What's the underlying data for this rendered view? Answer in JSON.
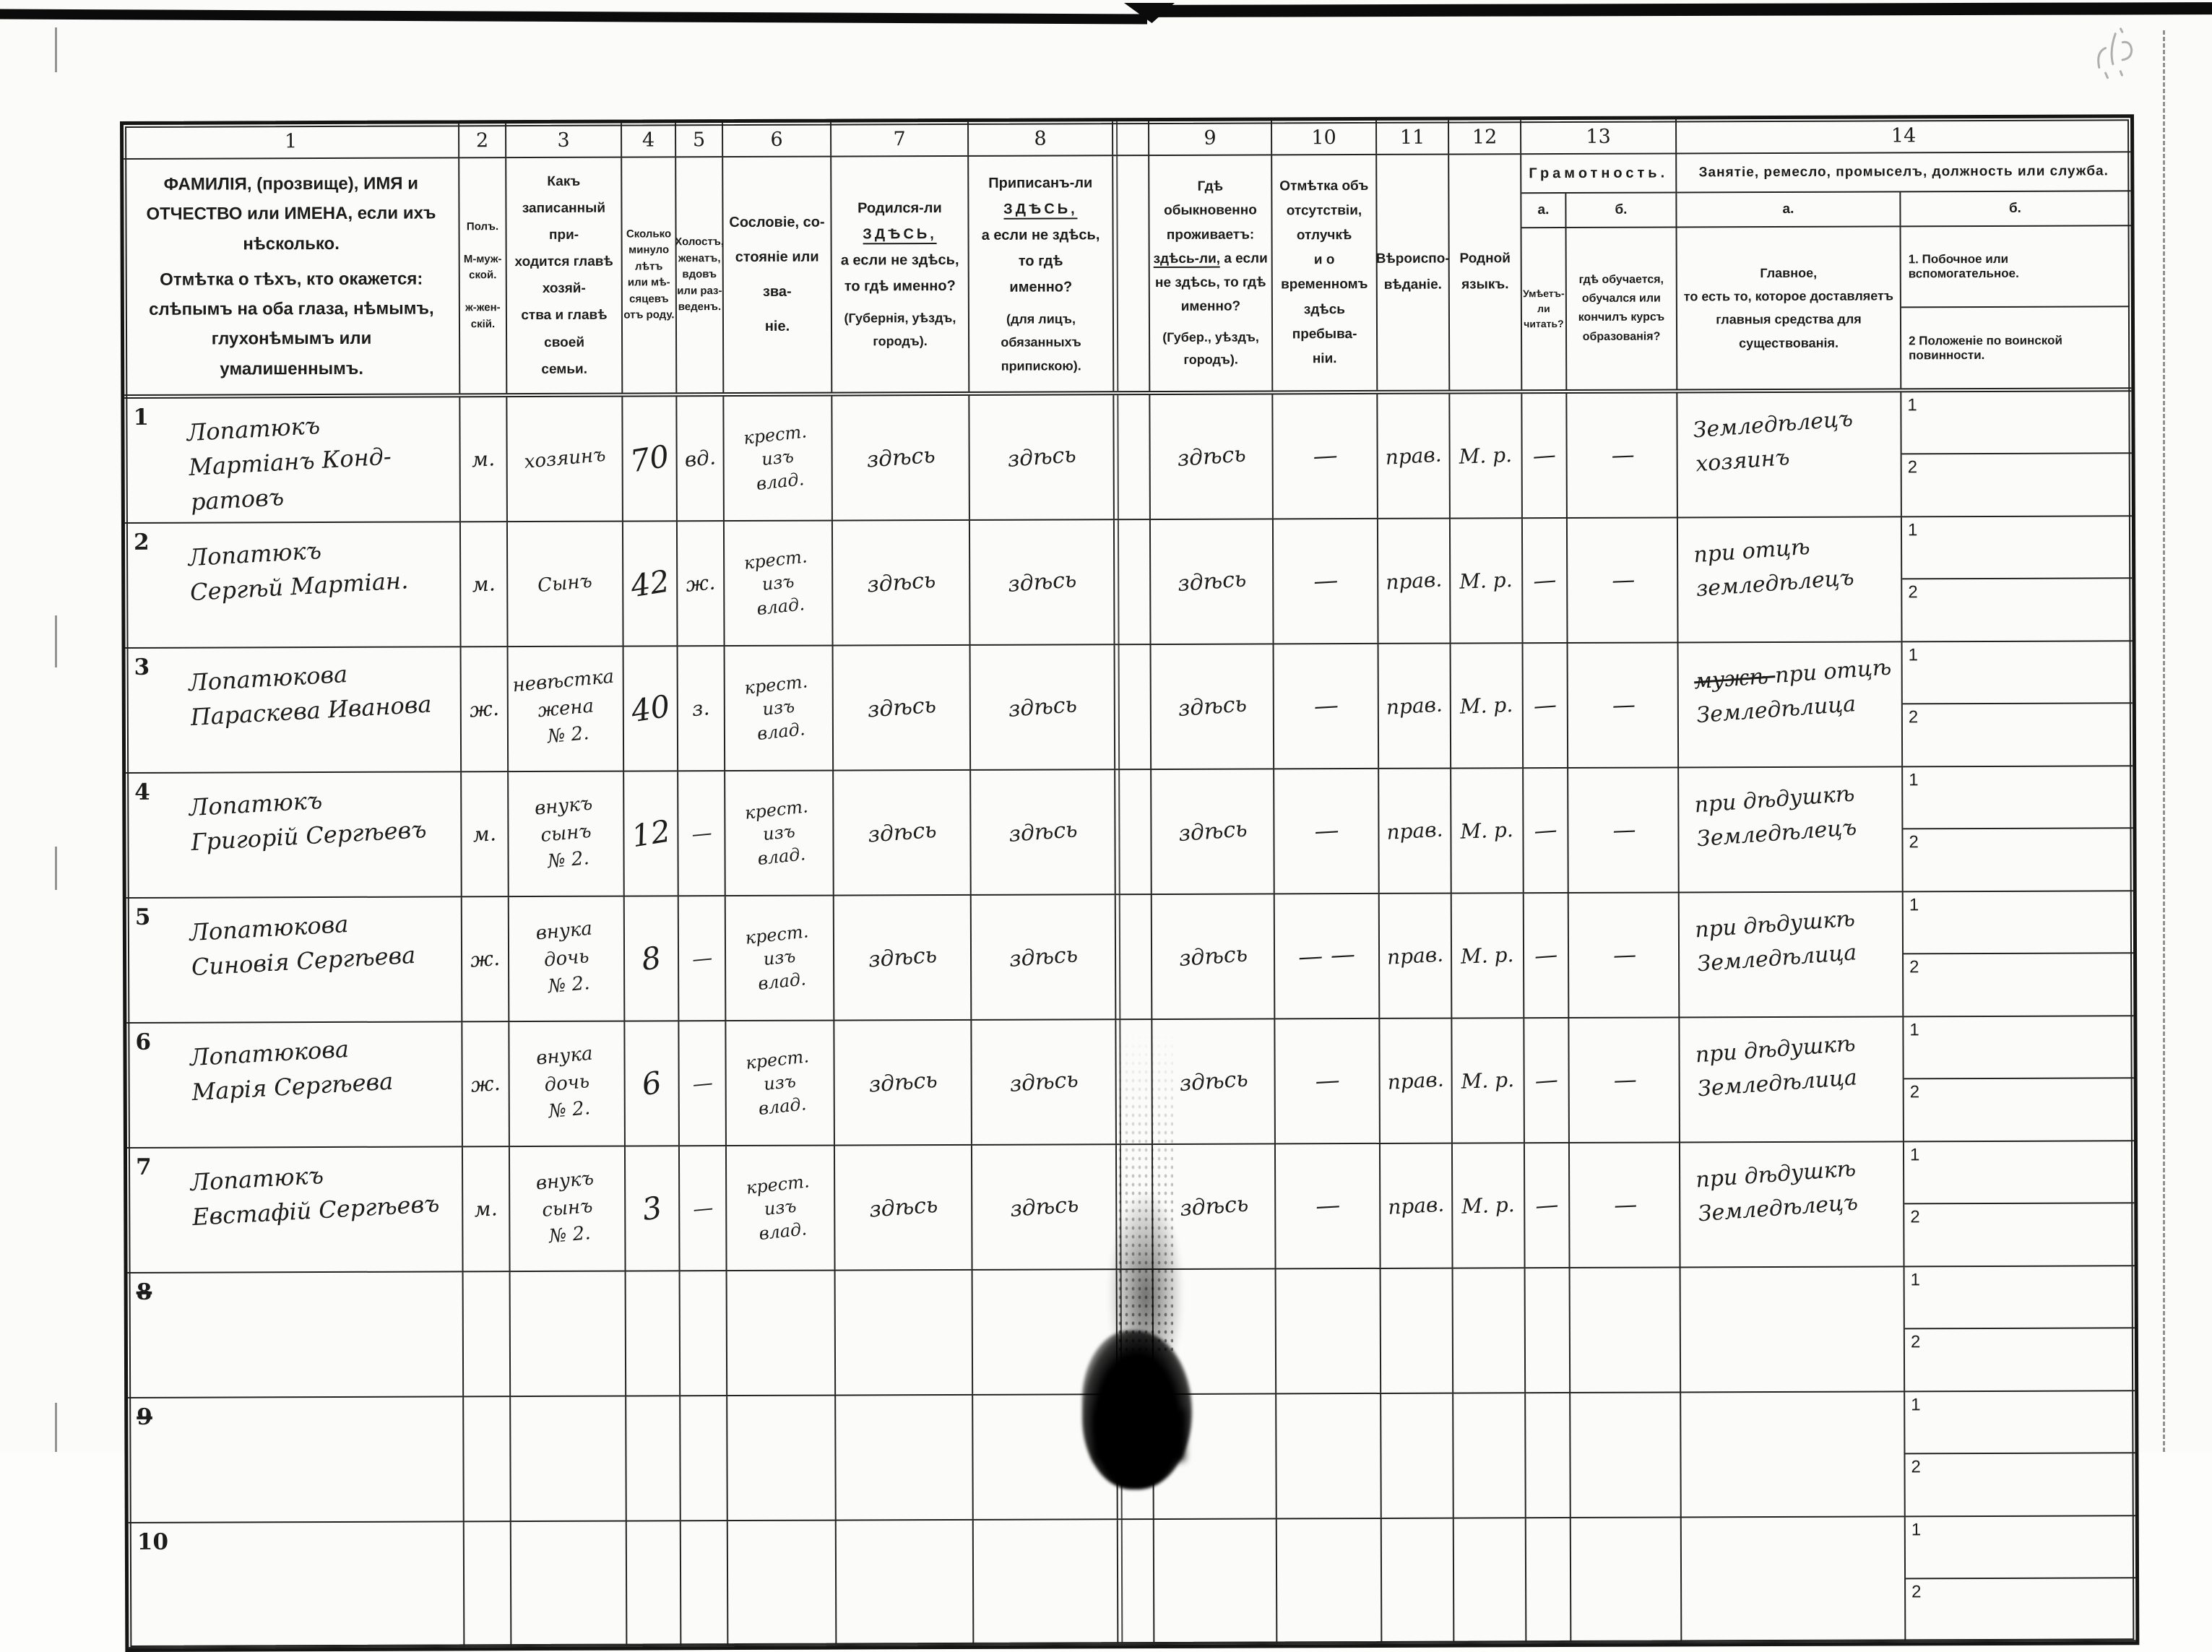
{
  "document_type": "Переписной листъ (первая всеобщая перепись населенія Россійской Имперіи)",
  "colors": {
    "paper": "#fbfbf9",
    "print_ink": "#1c1c1c",
    "handwriting_ink": "#1e1d1b"
  },
  "header": {
    "nums": [
      "1",
      "2",
      "3",
      "4",
      "5",
      "6",
      "7",
      "8",
      "9",
      "10",
      "11",
      "12",
      "13",
      "14"
    ],
    "c1a": "ФАМИЛІЯ, (прозвище), ИМЯ и ОТЧЕСТВО или ИМЕНА, если ихъ нѣсколько.",
    "c1b": "Отмѣтка о тѣхъ, кто окажется: слѣпымъ на оба глаза, нѣмымъ, глухонѣмымъ или умалишеннымъ.",
    "c2": "Полъ.\n\nМ-муж-\nской.\n\nж-жен-\nскій.",
    "c3": "Какъ записанный при-\nходится главѣ хозяй-\nства и главѣ своей\nсемьи.",
    "c4": "Сколько\nминуло\nлѣтъ\nили мѣ-\nсяцевъ\nотъ роду.",
    "c5": "Холостъ,\nженатъ,\nвдовъ\nили раз-\nведенъ.",
    "c6": "Сословіе, со-\nстояніе или зва-\nніе.",
    "c7": {
      "pre": "Родился-ли",
      "zd": "ЗДѢСЬ,",
      "rest": "а если не здѣсь,\nто гдѣ именно?",
      "paren": "(Губернія, уѣздъ, городъ)."
    },
    "c8": {
      "pre": "Приписанъ-ли",
      "zd": "ЗДѢСЬ,",
      "rest": "а если не здѣсь, то гдѣ\nименно?",
      "paren": "(для лицъ, обязанныхъ\nприпискою)."
    },
    "c9": {
      "top": "Гдѣ обыкновенно\nпроживаетъ:",
      "u": "здѣсь-ли,",
      "after": " а если",
      "rest": "не здѣсь, то гдѣ\nименно?",
      "paren": "(Губер., уѣздъ, городъ)."
    },
    "c10": "Отмѣтка объ\nотсутствіи, отлучкѣ\nи о временномъ\nздѣсь пребыва-\nніи.",
    "c11": "Вѣроиспо-\nвѣданіе.",
    "c12": "Родной\nязыкъ.",
    "c13": {
      "title": "Грамотность.",
      "a": "а.",
      "b": "б.",
      "a_desc": "Умѣетъ-\nли\nчитать?",
      "b_desc": "гдѣ обучается,\nобучался или\nкончилъ курсъ\nобразованія?"
    },
    "c14": {
      "title": "Занятіе, ремесло, промыселъ, должность или служба.",
      "a": "а.",
      "b": "б.",
      "a_desc": "Главное,\nто есть то, которое доставляетъ\nглавныя средства для существованія.",
      "b1": "1. Побочное или вспомогательное.",
      "b2": "2  Положеніе по воинской повинности."
    }
  },
  "table": {
    "sub_row_labels": [
      "1",
      "2"
    ],
    "rows": [
      {
        "num": "1",
        "struck": false,
        "name": "Лопатюкъ\nМартіанъ Конд-\nратовъ",
        "sex": "м.",
        "relation": "хозяинъ",
        "age": "70",
        "marital": "вд.",
        "estate": "крест.\nизъ\nвлад.",
        "born": "здѣсь",
        "registered": "здѣсь",
        "resides": "здѣсь",
        "absence": "—",
        "religion": "прав.",
        "language": "М. р.",
        "lit_a": "—",
        "lit_b": "—",
        "occ": "Земледѣлецъ\nхозяинъ"
      },
      {
        "num": "2",
        "struck": false,
        "name": "Лопатюкъ\nСергѣй Мартіан.",
        "sex": "м.",
        "relation": "Сынъ",
        "age": "42",
        "marital": "ж.",
        "estate": "крест.\nизъ\nвлад.",
        "born": "здѣсь",
        "registered": "здѣсь",
        "resides": "здѣсь",
        "absence": "—",
        "religion": "прав.",
        "language": "М. р.",
        "lit_a": "—",
        "lit_b": "—",
        "occ": "при отцѣ\nземледѣлецъ"
      },
      {
        "num": "3",
        "struck": false,
        "name": "Лопатюкова\nПараскева Иванова",
        "sex": "ж.",
        "relation": "невѣстка\nжена\n№ 2.",
        "age": "40",
        "marital": "з.",
        "estate": "крест.\nизъ\nвлад.",
        "born": "здѣсь",
        "registered": "здѣсь",
        "resides": "здѣсь",
        "absence": "—",
        "religion": "прав.",
        "language": "М. р.",
        "lit_a": "—",
        "lit_b": "—",
        "occ_struck": "мужѣ",
        "occ": "при отцѣ\nЗемледѣлица"
      },
      {
        "num": "4",
        "struck": false,
        "name": "Лопатюкъ\nГригорій Сергѣевъ",
        "sex": "м.",
        "relation": "внукъ\nсынъ\n№ 2.",
        "age": "12",
        "marital": "—",
        "estate": "крест.\nизъ\nвлад.",
        "born": "здѣсь",
        "registered": "здѣсь",
        "resides": "здѣсь",
        "absence": "—",
        "religion": "прав.",
        "language": "М. р.",
        "lit_a": "—",
        "lit_b": "—",
        "occ": "при дѣдушкѣ\nЗемледѣлецъ"
      },
      {
        "num": "5",
        "struck": false,
        "name": "Лопатюкова\nСиновія Сергѣева",
        "sex": "ж.",
        "relation": "внука\nдочь\n№ 2.",
        "age": "8",
        "marital": "—",
        "estate": "крест.\nизъ\nвлад.",
        "born": "здѣсь",
        "registered": "здѣсь",
        "resides": "здѣсь",
        "absence": "— —",
        "religion": "прав.",
        "language": "М. р.",
        "lit_a": "—",
        "lit_b": "—",
        "occ": "при дѣдушкѣ\nЗемледѣлица"
      },
      {
        "num": "6",
        "struck": false,
        "name": "Лопатюкова\nМарія Сергѣева",
        "sex": "ж.",
        "relation": "внука\nдочь\n№ 2.",
        "age": "6",
        "marital": "—",
        "estate": "крест.\nизъ\nвлад.",
        "born": "здѣсь",
        "registered": "здѣсь",
        "resides": "здѣсь",
        "absence": "—",
        "religion": "прав.",
        "language": "М. р.",
        "lit_a": "—",
        "lit_b": "—",
        "occ": "при дѣдушкѣ\nЗемледѣлица"
      },
      {
        "num": "7",
        "struck": false,
        "name": "Лопатюкъ\nЕвстафій Сергѣевъ",
        "sex": "м.",
        "relation": "внукъ\nсынъ\n№ 2.",
        "age": "3",
        "marital": "—",
        "estate": "крест.\nизъ\nвлад.",
        "born": "здѣсь",
        "registered": "здѣсь",
        "resides": "здѣсь",
        "absence": "—",
        "religion": "прав.",
        "language": "М. р.",
        "lit_a": "—",
        "lit_b": "—",
        "occ": "при дѣдушкѣ\nЗемледѣлецъ"
      },
      {
        "num": "8",
        "struck": true,
        "name": "",
        "sex": "",
        "relation": "",
        "age": "",
        "marital": "",
        "estate": "",
        "born": "",
        "registered": "",
        "resides": "",
        "absence": "",
        "religion": "",
        "language": "",
        "lit_a": "",
        "lit_b": "",
        "occ": ""
      },
      {
        "num": "9",
        "struck": true,
        "name": "",
        "sex": "",
        "relation": "",
        "age": "",
        "marital": "",
        "estate": "",
        "born": "",
        "registered": "",
        "resides": "",
        "absence": "",
        "religion": "",
        "language": "",
        "lit_a": "",
        "lit_b": "",
        "occ": ""
      },
      {
        "num": "10",
        "struck": false,
        "name": "",
        "sex": "",
        "relation": "",
        "age": "",
        "marital": "",
        "estate": "",
        "born": "",
        "registered": "",
        "resides": "",
        "absence": "",
        "religion": "",
        "language": "",
        "lit_a": "",
        "lit_b": "",
        "occ": ""
      }
    ]
  }
}
